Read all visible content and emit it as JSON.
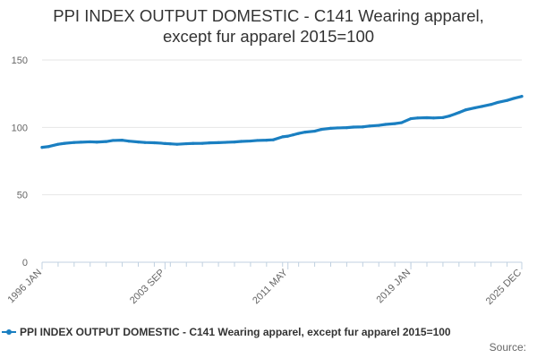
{
  "title_lines": [
    "PPI INDEX OUTPUT DOMESTIC - C141 Wearing apparel,",
    "except fur apparel 2015=100"
  ],
  "legend": {
    "label": "PPI INDEX OUTPUT DOMESTIC - C141 Wearing apparel, except fur apparel 2015=100"
  },
  "source_label": "Source:",
  "colors": {
    "series": "#1a7fc1",
    "grid": "#e6e6e6",
    "axis": "#c0d0e0",
    "text": "#666666"
  },
  "chart_data": {
    "type": "line",
    "title": "PPI INDEX OUTPUT DOMESTIC - C141 Wearing apparel, except fur apparel 2015=100",
    "xlabel": "",
    "ylabel": "",
    "ylim": [
      0,
      150
    ],
    "yticks": [
      0,
      50,
      100,
      150
    ],
    "xticks": [
      "1996 JAN",
      "2003 SEP",
      "2011 MAY",
      "2019 JAN",
      "2025 DEC"
    ],
    "x_range": [
      "1996 JAN",
      "2025 DEC"
    ],
    "grid": true,
    "legend_position": "bottom",
    "series": [
      {
        "name": "PPI INDEX OUTPUT DOMESTIC - C141 Wearing apparel, except fur apparel 2015=100",
        "x": [
          "1996-01",
          "1996-06",
          "1997-01",
          "1997-06",
          "1998-01",
          "1998-06",
          "1999-01",
          "1999-06",
          "2000-01",
          "2000-06",
          "2001-01",
          "2001-06",
          "2002-01",
          "2002-06",
          "2003-01",
          "2003-06",
          "2003-09",
          "2004-01",
          "2004-06",
          "2005-01",
          "2005-06",
          "2006-01",
          "2006-06",
          "2007-01",
          "2007-06",
          "2008-01",
          "2008-06",
          "2009-01",
          "2009-06",
          "2010-01",
          "2010-06",
          "2011-01",
          "2011-05",
          "2011-09",
          "2012-01",
          "2012-06",
          "2013-01",
          "2013-06",
          "2014-01",
          "2014-06",
          "2015-01",
          "2015-06",
          "2016-01",
          "2016-06",
          "2017-01",
          "2017-06",
          "2018-01",
          "2018-06",
          "2019-01",
          "2019-06",
          "2020-01",
          "2020-06",
          "2021-01",
          "2021-06",
          "2022-01",
          "2022-06",
          "2023-01",
          "2023-06",
          "2024-01",
          "2024-06",
          "2025-01",
          "2025-06",
          "2025-12"
        ],
        "y": [
          85.2,
          85.8,
          87.5,
          88.2,
          88.8,
          89.0,
          89.3,
          89.1,
          89.5,
          90.3,
          90.5,
          89.8,
          89.2,
          88.8,
          88.6,
          88.3,
          88.0,
          87.8,
          87.5,
          87.9,
          88.1,
          88.2,
          88.5,
          88.7,
          88.9,
          89.2,
          89.6,
          89.9,
          90.3,
          90.5,
          90.8,
          93.0,
          93.5,
          94.5,
          95.5,
          96.5,
          97.2,
          98.5,
          99.3,
          99.6,
          99.8,
          100.2,
          100.4,
          101.0,
          101.5,
          102.2,
          102.8,
          103.5,
          106.5,
          107.0,
          107.2,
          107.0,
          107.3,
          108.5,
          111.0,
          113.0,
          114.5,
          115.5,
          117.0,
          118.5,
          120.0,
          121.5,
          123.0
        ]
      }
    ]
  }
}
